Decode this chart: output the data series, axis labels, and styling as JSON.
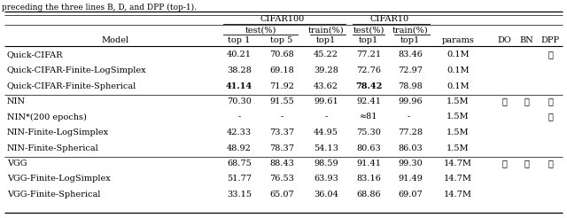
{
  "title_text": "preceding the three lines B, D, and DPP (top-1).",
  "rows": [
    [
      "Quick-CIFAR",
      "40.21",
      "70.68",
      "45.22",
      "77.21",
      "83.46",
      "0.1M",
      "",
      "",
      "✓"
    ],
    [
      "Quick-CIFAR-Finite-LogSimplex",
      "38.28",
      "69.18",
      "39.28",
      "72.76",
      "72.97",
      "0.1M",
      "",
      "",
      ""
    ],
    [
      "Quick-CIFAR-Finite-Spherical",
      "41.14",
      "71.92",
      "43.62",
      "78.42",
      "78.98",
      "0.1M",
      "",
      "",
      ""
    ],
    [
      "NIN",
      "70.30",
      "91.55",
      "99.61",
      "92.41",
      "99.96",
      "1.5M",
      "✓",
      "✓",
      "✓"
    ],
    [
      "NIN*(200 epochs)",
      "-",
      "-",
      "-",
      "≈81",
      "- ",
      "1.5M",
      "",
      "",
      "✓"
    ],
    [
      "NIN-Finite-LogSimplex",
      "42.33",
      "73.37",
      "44.95",
      "75.30",
      "77.28",
      "1.5M",
      "",
      "",
      ""
    ],
    [
      "NIN-Finite-Spherical",
      "48.92",
      "78.37",
      "54.13",
      "80.63",
      "86.03",
      "1.5M",
      "",
      "",
      ""
    ],
    [
      "VGG",
      "68.75",
      "88.43",
      "98.59",
      "91.41",
      "99.30",
      "14.7M",
      "✓",
      "✓",
      "✓"
    ],
    [
      "VGG-Finite-LogSimplex",
      "51.77",
      "76.53",
      "63.93",
      "83.16",
      "91.49",
      "14.7M",
      "",
      "",
      ""
    ],
    [
      "VGG-Finite-Spherical",
      "33.15",
      "65.07",
      "36.04",
      "68.86",
      "69.07",
      "14.7M",
      "",
      "",
      ""
    ]
  ],
  "bold_rows_cols": [
    [
      2,
      1
    ],
    [
      2,
      4
    ]
  ],
  "group_sep_after": [
    2,
    6
  ],
  "background_color": "#ffffff",
  "fontsize": 7.0,
  "header_fontsize": 7.0
}
